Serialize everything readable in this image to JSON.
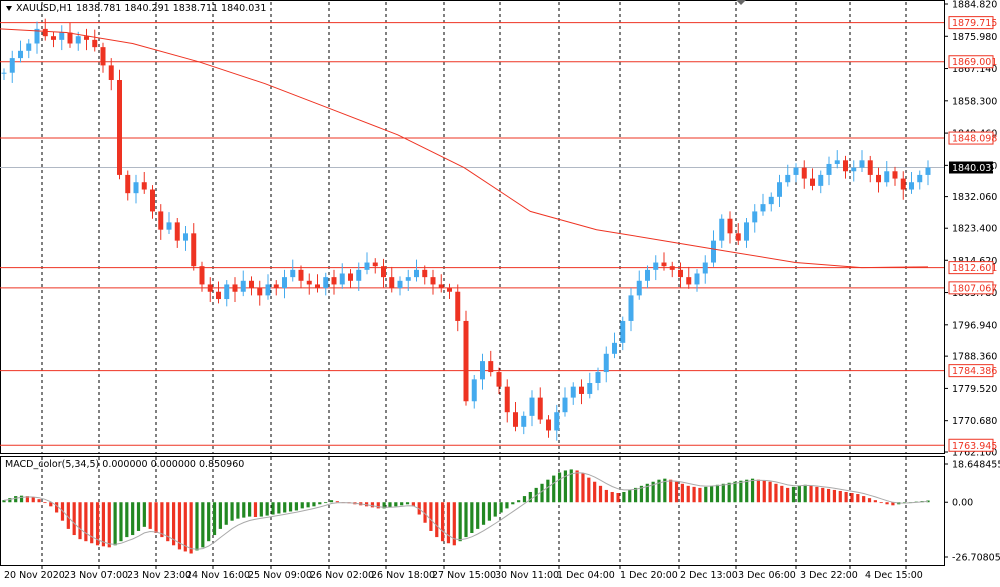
{
  "chart_header": {
    "symbol": "XAUUSD,H1",
    "ohlc": "1838.781 1840.291 1838.711 1840.031",
    "macd_title": "MACD_color(5,34,5) 0.000000 0.000000 0.850960"
  },
  "colors": {
    "bull": "#44aaee",
    "bear": "#ee3322",
    "line": "#ee3322",
    "grid": "#000000",
    "macd_up": "#228822",
    "macd_down": "#ee3322",
    "signal": "#aaaaaa",
    "current_price_bg": "#000000"
  },
  "chart_data": [
    {
      "type": "candlestick",
      "title": "XAUUSD,H1",
      "y_ticks": [
        "1884.820",
        "1875.980",
        "1867.140",
        "1858.300",
        "1849.460",
        "1840.620",
        "1832.060",
        "1823.400",
        "1814.620",
        "1805.780",
        "1796.940",
        "1788.360",
        "1779.520",
        "1770.680",
        "1762.100"
      ],
      "ylim": [
        1762.1,
        1884.82
      ],
      "x_ticks": [
        "20 Nov 2020",
        "23 Nov 07:00",
        "23 Nov 23:00",
        "24 Nov 16:00",
        "25 Nov 09:00",
        "26 Nov 02:00",
        "26 Nov 18:00",
        "27 Nov 15:00",
        "30 Nov 11:00",
        "1 Dec 04:00",
        "1 Dec 20:00",
        "2 Dec 13:00",
        "3 Dec 06:00",
        "3 Dec 22:00",
        "4 Dec 15:00"
      ],
      "horizontal_levels": [
        "1879.715",
        "1869.001",
        "1848.098",
        "1812.601",
        "1807.067",
        "1784.386",
        "1763.945"
      ],
      "current_price": "1840.031",
      "moving_average": [
        1878,
        1877,
        1874,
        1869,
        1863,
        1856,
        1849,
        1840,
        1828,
        1823,
        1820,
        1817,
        1814,
        1812.6,
        1812.8
      ],
      "price_path": [
        1866,
        1870,
        1872,
        1874,
        1878,
        1876,
        1875,
        1877,
        1874,
        1876,
        1875,
        1873,
        1868,
        1864,
        1838,
        1833,
        1836,
        1834,
        1828,
        1823,
        1825,
        1820,
        1822,
        1813,
        1808,
        1806,
        1804,
        1808,
        1806,
        1809,
        1807,
        1805,
        1808,
        1807,
        1810,
        1812,
        1809,
        1808,
        1807,
        1810,
        1808,
        1811,
        1809,
        1812,
        1814,
        1813,
        1810,
        1807,
        1809,
        1810,
        1812,
        1810,
        1808,
        1807,
        1806,
        1798,
        1776,
        1782,
        1787,
        1784,
        1780,
        1773,
        1769,
        1772,
        1777,
        1771,
        1768,
        1773,
        1777,
        1780,
        1778,
        1781,
        1784,
        1789,
        1792,
        1798,
        1805,
        1809,
        1812,
        1814,
        1813,
        1812,
        1810,
        1808,
        1811,
        1814,
        1820,
        1826,
        1822,
        1820,
        1825,
        1828,
        1830,
        1832,
        1836,
        1838,
        1840,
        1837,
        1835,
        1838,
        1841,
        1842,
        1839,
        1840,
        1842,
        1838,
        1836,
        1839,
        1837,
        1834,
        1836,
        1838,
        1840
      ]
    },
    {
      "type": "bar",
      "title": "MACD_color(5,34,5) 0.000000 0.000000 0.850960",
      "y_ticks": [
        "18.648455",
        "0.00",
        "-26.70805"
      ],
      "ylim": [
        -26.70805,
        18.648455
      ],
      "values": [
        1,
        2,
        3,
        3.2,
        3,
        2.5,
        1.5,
        0,
        -2,
        -5,
        -9,
        -13,
        -16,
        -18,
        -19,
        -20,
        -21,
        -21.5,
        -22,
        -21,
        -19,
        -17,
        -16,
        -14,
        -12,
        -13,
        -15,
        -17,
        -19,
        -21,
        -23,
        -24,
        -25,
        -23.5,
        -22,
        -19,
        -16,
        -13,
        -11,
        -9,
        -8,
        -7.5,
        -7,
        -7.2,
        -7,
        -6.5,
        -6,
        -5.5,
        -5,
        -4.5,
        -4,
        -3,
        -2.5,
        -2,
        -1,
        0,
        1,
        0.5,
        0,
        -0.5,
        -1,
        -1.5,
        -2,
        -2.5,
        -3,
        -3,
        -2.5,
        -2,
        -1.5,
        -1,
        -2,
        -6,
        -10,
        -14,
        -17,
        -19,
        -20,
        -21,
        -19,
        -17,
        -15,
        -13,
        -11,
        -9,
        -7,
        -5,
        -3,
        -1,
        1,
        3,
        5,
        7,
        9,
        11,
        13,
        14.5,
        15.5,
        16,
        15.5,
        14,
        12,
        10,
        8,
        6,
        5,
        4.5,
        5,
        6,
        7,
        8,
        9,
        10,
        11,
        11.5,
        11,
        10,
        9,
        8,
        7.5,
        7,
        7.5,
        8,
        8.5,
        9,
        9.5,
        10,
        10.5,
        11,
        11.5,
        11,
        10.5,
        10,
        9,
        8,
        7,
        7.5,
        8,
        8.5,
        8,
        7.5,
        7,
        6.5,
        6,
        5.5,
        5,
        4.5,
        4,
        3,
        2,
        1,
        0,
        -1,
        -1.5,
        -1,
        -0.5,
        0,
        0.3,
        0.6,
        0.85
      ]
    }
  ]
}
